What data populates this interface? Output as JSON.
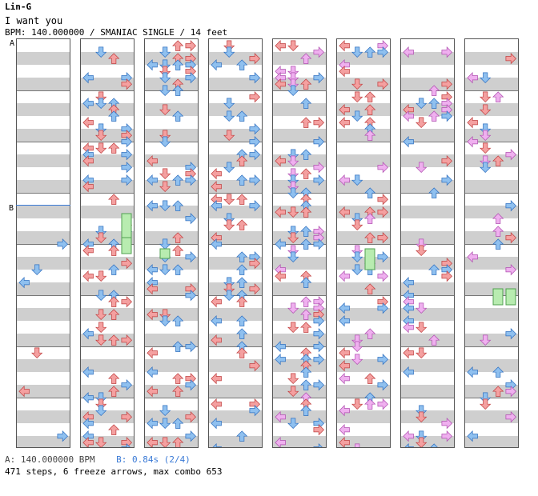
{
  "header": {
    "artist": "Lin-G",
    "title": "I want you",
    "info": "BPM: 140.000000 / SMANIAC SINGLE / 14 feet"
  },
  "markers": {
    "a": "A",
    "b": "B"
  },
  "footer": {
    "a_text": "A: 140.000000 BPM",
    "b_text": "B: 0.84s (2/4)",
    "stats": "471 steps, 6 freeze arrows, max combo 653"
  },
  "colors": {
    "quarter": "#f4a0a0",
    "eighth": "#8fc0ef",
    "sixteenth": "#efb0ef",
    "freeze": "#b8ecb0"
  }
}
